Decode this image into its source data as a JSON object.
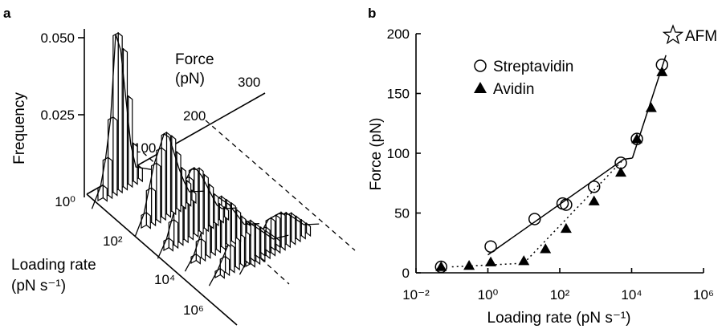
{
  "chart_data": [
    {
      "type": "bar",
      "panel": "a",
      "projection": "3D stacked histograms of rupture force vs loading rate",
      "zlabel": "Frequency",
      "force_label": [
        "Force",
        "(pN)"
      ],
      "rate_label": [
        "Loading rate",
        "(pN s⁻¹)"
      ],
      "z_ticks": [
        "0.050",
        "0.025",
        "10⁰"
      ],
      "force_ticks": [
        "100",
        "200",
        "300"
      ],
      "rate_ticks": [
        "10²",
        "10⁴",
        "10⁶"
      ],
      "histograms": [
        {
          "values": [
            0.004,
            0.012,
            0.024,
            0.05,
            0.044,
            0.028,
            0.012,
            0.004
          ]
        },
        {
          "values": [
            0.004,
            0.011,
            0.018,
            0.022,
            0.026,
            0.024,
            0.018,
            0.012,
            0.007,
            0.003
          ]
        },
        {
          "values": [
            0.003,
            0.008,
            0.013,
            0.017,
            0.019,
            0.021,
            0.02,
            0.017,
            0.013,
            0.009,
            0.005,
            0.003
          ]
        },
        {
          "values": [
            0.002,
            0.006,
            0.01,
            0.013,
            0.015,
            0.016,
            0.014,
            0.012,
            0.009,
            0.006,
            0.003
          ]
        },
        {
          "values": [
            0.002,
            0.005,
            0.008,
            0.011,
            0.012,
            0.013,
            0.012,
            0.01,
            0.008,
            0.006,
            0.004,
            0.002
          ]
        },
        {
          "values": [
            0.002,
            0.005,
            0.007,
            0.009,
            0.011,
            0.011,
            0.011,
            0.01,
            0.009,
            0.007,
            0.005,
            0.003
          ]
        }
      ]
    },
    {
      "type": "scatter",
      "panel": "b",
      "xlabel": "Loading rate (pN s⁻¹)",
      "ylabel": "Force (pN)",
      "xscale": "log",
      "xlim": [
        0.01,
        1000000
      ],
      "ylim": [
        0,
        200
      ],
      "x_ticks": [
        {
          "value": 0.01,
          "label": "10⁻²"
        },
        {
          "value": 1,
          "label": "10⁰"
        },
        {
          "value": 100,
          "label": "10²"
        },
        {
          "value": 10000,
          "label": "10⁴"
        },
        {
          "value": 1000000,
          "label": "10⁶"
        }
      ],
      "y_ticks": [
        0,
        50,
        100,
        150,
        200
      ],
      "legend_position": "top-left",
      "annotation": {
        "label": "AFM",
        "marker": "star",
        "position": "top-right"
      },
      "series": [
        {
          "name": "Streptavidin",
          "marker": "open-circle",
          "line": "solid",
          "x": [
            0.05,
            1.2,
            20,
            120,
            150,
            900,
            5000,
            14000,
            70000
          ],
          "y": [
            5,
            22,
            45,
            58,
            57,
            72,
            92,
            112,
            174
          ]
        },
        {
          "name": "Avidin",
          "marker": "filled-triangle",
          "line": "dotted",
          "x": [
            0.05,
            0.3,
            1.2,
            10,
            40,
            150,
            900,
            5000,
            14000,
            35000,
            70000
          ],
          "y": [
            5,
            6,
            9,
            10,
            20,
            37,
            60,
            84,
            112,
            138,
            168
          ]
        }
      ],
      "fits": [
        {
          "name": "Streptavidin",
          "style": "solid",
          "segments": [
            [
              [
                1,
                15
              ],
              [
                6000,
                95
              ]
            ],
            [
              [
                6000,
                95
              ],
              [
                10500,
                96
              ]
            ],
            [
              [
                10500,
                96
              ],
              [
                90000,
                182
              ]
            ]
          ]
        },
        {
          "name": "Avidin",
          "style": "dotted",
          "segments": [
            [
              [
                0.1,
                5
              ],
              [
                10,
                8
              ]
            ],
            [
              [
                10,
                8
              ],
              [
                6000,
                95
              ]
            ]
          ]
        }
      ]
    }
  ]
}
